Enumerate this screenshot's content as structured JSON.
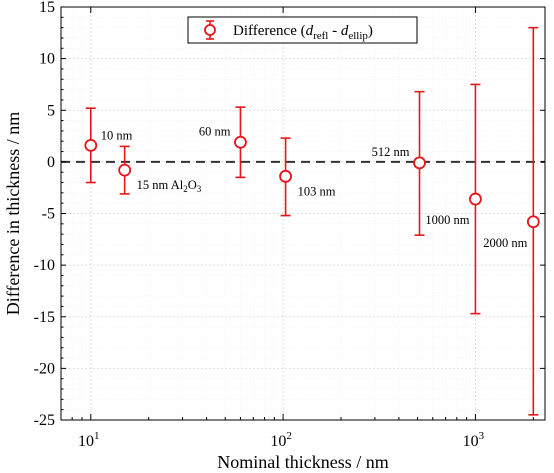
{
  "chart_data": {
    "type": "scatter",
    "xlabel": "Nominal thickness / nm",
    "ylabel": "Difference in thickness / nm",
    "xscale": "log",
    "xlim": [
      7,
      2300
    ],
    "ylim": [
      -25,
      15
    ],
    "yticks": [
      -25,
      -20,
      -15,
      -10,
      -5,
      0,
      5,
      10,
      15
    ],
    "xticks": [
      {
        "value": 10,
        "base": "10",
        "exp": "1"
      },
      {
        "value": 100,
        "base": "10",
        "exp": "2"
      },
      {
        "value": 1000,
        "base": "10",
        "exp": "3"
      }
    ],
    "grid": true,
    "reference_line": {
      "y": 0,
      "style": "dashed"
    },
    "legend": {
      "placement": "top-center",
      "label": {
        "prefix": "Difference (",
        "d1": "d",
        "sub1": "refl",
        "mid": " - ",
        "d2": "d",
        "sub2": "ellip",
        "suffix": ")"
      }
    },
    "color": "#e8141b",
    "points": [
      {
        "x": 10,
        "y": 1.6,
        "yerr_low": -2.0,
        "yerr_high": 5.2,
        "label": "10 nm",
        "label_pos": "right"
      },
      {
        "x": 15,
        "y": -0.8,
        "yerr_low": -3.1,
        "yerr_high": 1.5,
        "label": "15 nm ",
        "chem": {
          "a": "Al",
          "s1": "2",
          "b": "O",
          "s2": "3"
        },
        "label_pos": "below-right"
      },
      {
        "x": 60,
        "y": 1.9,
        "yerr_low": -1.5,
        "yerr_high": 5.3,
        "label": "60 nm",
        "label_pos": "left"
      },
      {
        "x": 103,
        "y": -1.4,
        "yerr_low": -5.2,
        "yerr_high": 2.3,
        "label": "103 nm",
        "label_pos": "below-right"
      },
      {
        "x": 512,
        "y": -0.1,
        "yerr_low": -7.1,
        "yerr_high": 6.8,
        "label": "512 nm",
        "label_pos": "left"
      },
      {
        "x": 1000,
        "y": -3.6,
        "yerr_low": -14.7,
        "yerr_high": 7.5,
        "label": "1000 nm",
        "label_pos": "below-left"
      },
      {
        "x": 2000,
        "y": -5.8,
        "yerr_low": -24.5,
        "yerr_high": 13.0,
        "label": "2000 nm",
        "label_pos": "below-left"
      }
    ]
  }
}
